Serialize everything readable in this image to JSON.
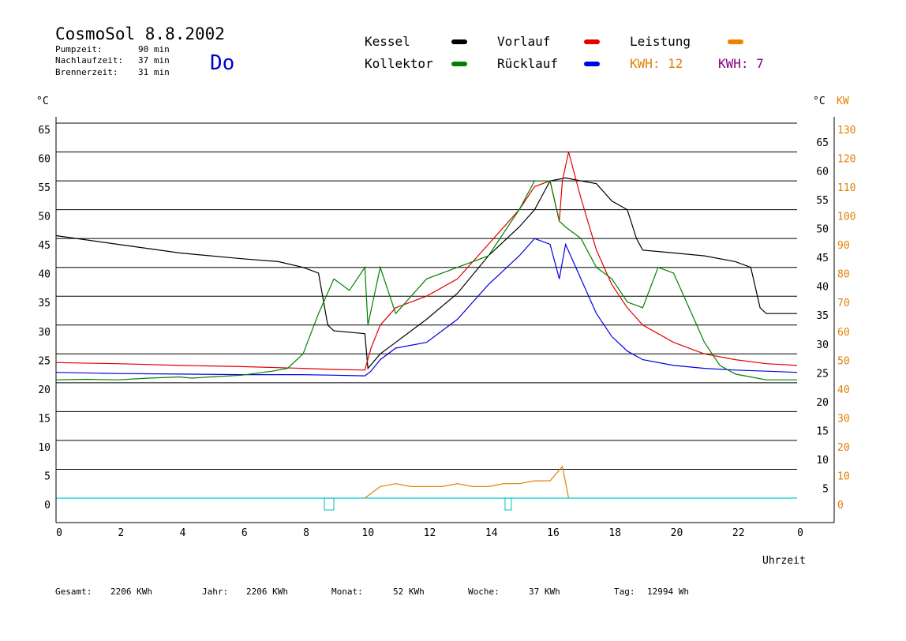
{
  "header": {
    "title": "CosmoSol 8.8.2002",
    "day": "Do",
    "info": [
      {
        "label": "Pumpzeit:",
        "value": "90 min"
      },
      {
        "label": "Nachlaufzeit:",
        "value": "37 min"
      },
      {
        "label": "Brennerzeit:",
        "value": "31 min"
      }
    ]
  },
  "legend": {
    "items": [
      {
        "label": "Kessel",
        "color": "#000000"
      },
      {
        "label": "Kollektor",
        "color": "#008000"
      },
      {
        "label": "Vorlauf",
        "color": "#e00000"
      },
      {
        "label": "Rücklauf",
        "color": "#0000e0"
      },
      {
        "label": "Leistung",
        "color": "#f08000"
      }
    ],
    "kwh1": "KWH: 12",
    "kwh2": "KWH: 7",
    "kwh1_color": "#e08000",
    "kwh2_color": "#800080"
  },
  "axes": {
    "left_unit": "°C",
    "right_unit_c": "°C",
    "right_unit_kw": "KW",
    "x_label": "Uhrzeit"
  },
  "footer": [
    {
      "label": "Gesamt:",
      "value": "2206 KWh"
    },
    {
      "label": "Jahr:",
      "value": "2206 KWh"
    },
    {
      "label": "Monat:",
      "value": "52 KWh"
    },
    {
      "label": "Woche:",
      "value": "37 KWh"
    },
    {
      "label": "Tag:",
      "value": "12994 Wh"
    }
  ],
  "chart_data": {
    "type": "line",
    "xlabel": "Uhrzeit",
    "ylabel": "°C",
    "xlim": [
      0,
      24
    ],
    "ylim": [
      -2,
      67
    ],
    "x_ticks": [
      "0",
      "2",
      "4",
      "6",
      "8",
      "10",
      "12",
      "14",
      "16",
      "18",
      "20",
      "22",
      "0"
    ],
    "y_left_ticks": [
      "0",
      "5",
      "10",
      "15",
      "20",
      "25",
      "30",
      "35",
      "40",
      "45",
      "50",
      "55",
      "60",
      "65"
    ],
    "y_right_c_ticks": [
      "5",
      "10",
      "15",
      "20",
      "25",
      "30",
      "35",
      "40",
      "45",
      "50",
      "55",
      "60",
      "65"
    ],
    "y_right_kw_ticks": [
      "0",
      "10",
      "20",
      "30",
      "40",
      "50",
      "60",
      "70",
      "80",
      "90",
      "100",
      "110",
      "120",
      "130"
    ],
    "grid": true,
    "series": [
      {
        "name": "Kessel",
        "color": "#000000",
        "x": [
          0,
          2,
          4,
          6,
          7.2,
          8,
          8.5,
          8.8,
          9,
          10,
          10.1,
          10.5,
          11,
          12,
          13,
          14,
          15,
          15.5,
          16,
          16.5,
          17,
          17.5,
          18,
          18.5,
          18.8,
          19,
          20,
          21,
          22,
          22.5,
          22.8,
          23,
          24
        ],
        "y": [
          45.5,
          44,
          42.5,
          41.5,
          41,
          40,
          39,
          30,
          29,
          28.5,
          22.5,
          25,
          27,
          31,
          35.5,
          42,
          47,
          50,
          55,
          55.5,
          55,
          54.5,
          51.5,
          50,
          45,
          43,
          42.5,
          42,
          41,
          40,
          33,
          32,
          32
        ]
      },
      {
        "name": "Vorlauf",
        "color": "#e00000",
        "x": [
          0,
          2,
          4,
          6,
          8,
          9,
          10,
          10.2,
          10.5,
          11,
          12,
          13,
          14,
          15,
          15.5,
          16,
          16.3,
          16.4,
          16.6,
          17,
          17.5,
          18,
          18.5,
          19,
          20,
          21,
          22,
          23,
          24
        ],
        "y": [
          23.5,
          23.3,
          23,
          22.8,
          22.5,
          22.3,
          22.2,
          26,
          30,
          33,
          35,
          38,
          44,
          50,
          54,
          55,
          48,
          55,
          60,
          52,
          43,
          37,
          33,
          30,
          27,
          25,
          24,
          23.3,
          23
        ]
      },
      {
        "name": "Rücklauf",
        "color": "#0000e0",
        "x": [
          0,
          2,
          4,
          6,
          8,
          9,
          10,
          10.2,
          10.5,
          11,
          12,
          13,
          14,
          15,
          15.5,
          16,
          16.3,
          16.5,
          17,
          17.5,
          18,
          18.5,
          19,
          20,
          21,
          22,
          23,
          24
        ],
        "y": [
          21.8,
          21.6,
          21.5,
          21.4,
          21.4,
          21.3,
          21.2,
          22,
          24,
          26,
          27,
          31,
          37,
          42,
          45,
          44,
          38,
          44,
          38,
          32,
          28,
          25.5,
          24,
          23,
          22.5,
          22.2,
          22,
          21.8
        ]
      },
      {
        "name": "Kollektor",
        "color": "#008000",
        "x": [
          0,
          1,
          2,
          3,
          4,
          4.4,
          5,
          6,
          7,
          7.5,
          8,
          8.5,
          9,
          9.5,
          10,
          10.1,
          10.5,
          11,
          12,
          13,
          14,
          15,
          15.5,
          16,
          16.3,
          16.5,
          17,
          17.5,
          18,
          18.5,
          19,
          19.5,
          20,
          20.5,
          21,
          21.5,
          22,
          22.5,
          23,
          24
        ],
        "y": [
          20.5,
          20.6,
          20.5,
          20.8,
          21,
          20.8,
          21,
          21.3,
          22,
          22.5,
          25,
          32,
          38,
          36,
          40,
          30,
          40,
          32,
          38,
          40,
          42,
          50,
          55,
          55,
          48,
          47,
          45,
          40,
          38,
          34,
          33,
          40,
          39,
          33,
          27,
          23,
          21.5,
          21,
          20.5,
          20.5
        ]
      }
    ],
    "overlay": [
      {
        "name": "Leistung",
        "color": "#e08000",
        "unit": "KW",
        "x": [
          10,
          10.5,
          11,
          11.5,
          12,
          12.5,
          13,
          13.5,
          14,
          14.5,
          15,
          15.5,
          16,
          16.4,
          16.6
        ],
        "y": [
          0,
          4,
          5,
          4,
          4,
          4,
          5,
          4,
          4,
          5,
          5,
          6,
          6,
          11,
          0
        ]
      }
    ]
  }
}
